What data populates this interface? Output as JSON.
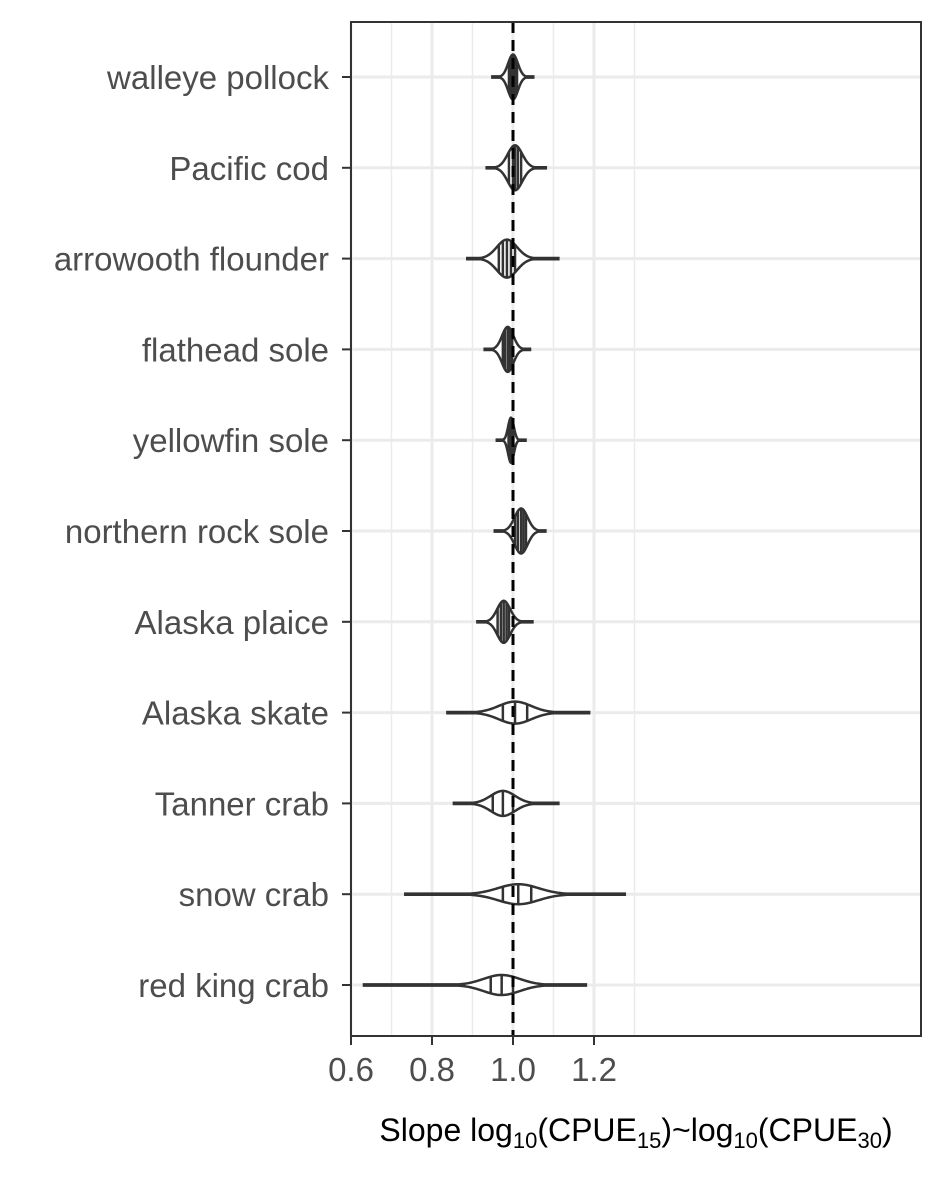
{
  "chart_data": {
    "type": "violin",
    "title": "",
    "xlabel": {
      "prefix": "Slope log",
      "sub1": "10",
      "mid1": "(CPUE",
      "sub2": "15",
      "mid2": ")~log",
      "sub3": "10",
      "mid3": "(CPUE",
      "sub4": "30",
      "suffix": ")"
    },
    "ylabel": "",
    "xlim": [
      0.6,
      1.3
    ],
    "xticks": [
      0.6,
      0.8,
      1.0,
      1.2
    ],
    "xtick_labels": [
      "0.6",
      "0.8",
      "1.0",
      "1.2"
    ],
    "reference_line": 1.0,
    "grid": true,
    "colors": {
      "outline": "#333333",
      "reference": "#000000",
      "grid": "#ebebeb",
      "panel_border": "#333333"
    },
    "categories": [
      "walleye pollock",
      "Pacific cod",
      "arrowooth flounder",
      "flathead sole",
      "yellowfin sole",
      "northern rock sole",
      "Alaska plaice",
      "Alaska skate",
      "Tanner crab",
      "snow crab",
      "red king crab"
    ],
    "series": [
      {
        "min": 0.949,
        "max": 1.05,
        "median": 1.0,
        "sd": 0.012,
        "quantiles": [
          0.99,
          0.995,
          1.0,
          1.005,
          1.01
        ],
        "height": 0.45
      },
      {
        "min": 0.935,
        "max": 1.081,
        "median": 1.005,
        "sd": 0.018,
        "quantiles": [
          0.99,
          1.0,
          1.005,
          1.012,
          1.02
        ],
        "height": 0.45
      },
      {
        "min": 0.887,
        "max": 1.112,
        "median": 0.985,
        "sd": 0.025,
        "quantiles": [
          0.965,
          0.975,
          0.985,
          0.995,
          1.005
        ],
        "height": 0.38
      },
      {
        "min": 0.93,
        "max": 1.042,
        "median": 0.987,
        "sd": 0.014,
        "quantiles": [
          0.975,
          0.98,
          0.987,
          0.992,
          0.998
        ],
        "height": 0.45
      },
      {
        "min": 0.96,
        "max": 1.031,
        "median": 0.995,
        "sd": 0.007,
        "quantiles": [
          0.989,
          0.992,
          0.995,
          0.998,
          1.001
        ],
        "height": 0.45
      },
      {
        "min": 0.955,
        "max": 1.08,
        "median": 1.02,
        "sd": 0.016,
        "quantiles": [
          1.005,
          1.012,
          1.02,
          1.026,
          1.032
        ],
        "height": 0.45
      },
      {
        "min": 0.912,
        "max": 1.048,
        "median": 0.977,
        "sd": 0.016,
        "quantiles": [
          0.962,
          0.97,
          0.977,
          0.984,
          0.99
        ],
        "height": 0.42
      },
      {
        "min": 0.838,
        "max": 1.188,
        "median": 1.005,
        "sd": 0.04,
        "quantiles": [
          0.975,
          1.005,
          1.035
        ],
        "height": 0.22
      },
      {
        "min": 0.854,
        "max": 1.112,
        "median": 0.975,
        "sd": 0.03,
        "quantiles": [
          0.95,
          0.975,
          1.0
        ],
        "height": 0.25
      },
      {
        "min": 0.734,
        "max": 1.276,
        "median": 1.013,
        "sd": 0.05,
        "quantiles": [
          0.975,
          1.013,
          1.045
        ],
        "height": 0.2
      },
      {
        "min": 0.632,
        "max": 1.18,
        "median": 0.972,
        "sd": 0.045,
        "quantiles": [
          0.945,
          0.972,
          1.0
        ],
        "height": 0.2
      }
    ]
  }
}
